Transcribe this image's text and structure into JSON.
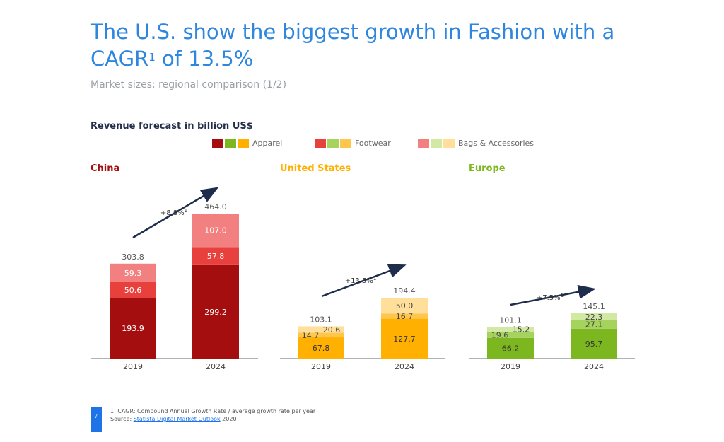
{
  "title_main": "The U.S. show the biggest growth in Fashion with a CAGR",
  "title_sup": "1",
  "title_end": " of 13.5%",
  "subtitle": "Market sizes: regional comparison (1/2)",
  "revenue_label": "Revenue forecast in billion US$",
  "legend": {
    "apparel": "Apparel",
    "footwear": "Footwear",
    "bags": "Bags & Accessories"
  },
  "page_number": "7",
  "footnote_1": "1: CAGR: Compound Annual Growth Rate / average growth rate per year",
  "source_prefix": "Source: ",
  "source_link": "Statista Digital Market Outlook",
  "source_year": " 2020",
  "colors": {
    "china": [
      "#a50e0e",
      "#e8403c",
      "#f28080"
    ],
    "us": [
      "#ffb000",
      "#ffc64d",
      "#ffdf99"
    ],
    "europe": [
      "#7cb71f",
      "#a6d25e",
      "#d2e9a4"
    ],
    "title": "#2e86de"
  },
  "chart_data": [
    {
      "type": "bar",
      "region": "China",
      "categories": [
        "2019",
        "2024"
      ],
      "series": [
        {
          "name": "Apparel",
          "values": [
            193.9,
            299.2
          ]
        },
        {
          "name": "Footwear",
          "values": [
            50.6,
            57.8
          ]
        },
        {
          "name": "Bags & Accessories",
          "values": [
            59.3,
            107.0
          ]
        }
      ],
      "totals": [
        "303.8",
        "464.0"
      ],
      "labels": [
        [
          "193.9",
          "50.6",
          "59.3"
        ],
        [
          "299.2",
          "57.8",
          "107.0"
        ]
      ],
      "cagr": "+8.8%",
      "cagr_sup": "1"
    },
    {
      "type": "bar",
      "region": "United States",
      "categories": [
        "2019",
        "2024"
      ],
      "series": [
        {
          "name": "Apparel",
          "values": [
            67.8,
            127.7
          ]
        },
        {
          "name": "Footwear",
          "values": [
            14.7,
            16.7
          ]
        },
        {
          "name": "Bags & Accessories",
          "values": [
            20.6,
            50.0
          ]
        }
      ],
      "totals": [
        "103.1",
        "194.4"
      ],
      "labels": [
        [
          "67.8",
          "14.7",
          "20.6"
        ],
        [
          "127.7",
          "16.7",
          "50.0"
        ]
      ],
      "cagr": "+13.5%",
      "cagr_sup": "1"
    },
    {
      "type": "bar",
      "region": "Europe",
      "categories": [
        "2019",
        "2024"
      ],
      "series": [
        {
          "name": "Apparel",
          "values": [
            66.2,
            95.7
          ]
        },
        {
          "name": "Footwear",
          "values": [
            19.6,
            27.1
          ]
        },
        {
          "name": "Bags & Accessories",
          "values": [
            15.2,
            22.3
          ]
        }
      ],
      "totals": [
        "101.1",
        "145.1"
      ],
      "labels": [
        [
          "66.2",
          "19.6",
          "15.2"
        ],
        [
          "95.7",
          "27.1",
          "22.3"
        ]
      ],
      "cagr": "+7.5%",
      "cagr_sup": "1"
    }
  ]
}
